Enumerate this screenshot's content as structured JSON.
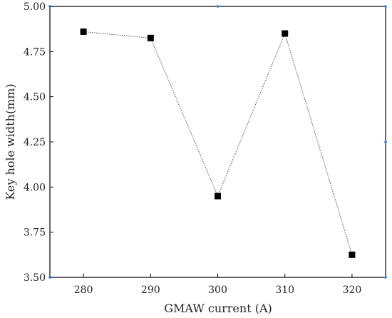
{
  "chart_data": {
    "type": "line",
    "title": "",
    "xlabel": "GMAW current (A)",
    "ylabel": "Key hole width(mm)",
    "x": [
      280,
      290,
      300,
      310,
      320
    ],
    "series": [
      {
        "values": [
          4.86,
          4.825,
          3.95,
          4.85,
          3.625
        ]
      }
    ],
    "xlim": [
      275,
      325
    ],
    "ylim": [
      3.5,
      5.0
    ],
    "xticks": [
      "280",
      "290",
      "300",
      "310",
      "320"
    ],
    "yticks": [
      "3.50",
      "3.75",
      "4.00",
      "4.25",
      "4.50",
      "4.75",
      "5.00"
    ],
    "grid": false,
    "legend": "none",
    "colors": {
      "line": "#555555",
      "marker": "#000000",
      "axis": "#000000",
      "axis_dot": "#2a7fd4"
    }
  }
}
